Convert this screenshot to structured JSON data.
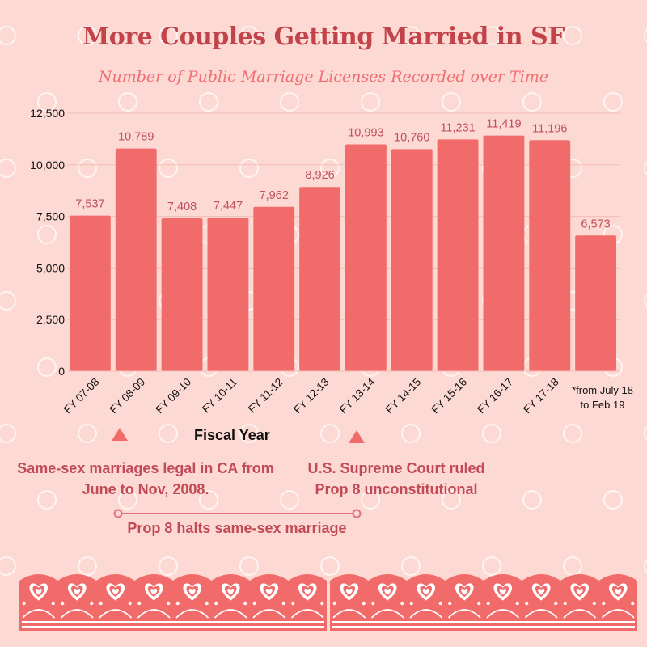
{
  "header": {
    "title": "More Couples Getting Married in SF",
    "subtitle": "Number of Public Marriage Licenses Recorded over Time"
  },
  "chart_data": {
    "type": "bar",
    "title": "More Couples Getting Married in SF",
    "subtitle": "Number of Public Marriage Licenses Recorded over Time",
    "xlabel": "Fiscal Year",
    "ylabel": "",
    "categories": [
      "FY 07-08",
      "FY 08-09",
      "FY 09-10",
      "FY 10-11",
      "FY 11-12",
      "FY 12-13",
      "FY 13-14",
      "FY 14-15",
      "FY 15-16",
      "FY 16-17",
      "FY 17-18",
      ""
    ],
    "values": [
      7537,
      10789,
      7408,
      7447,
      7962,
      8926,
      10993,
      10760,
      11231,
      11419,
      11196,
      6573
    ],
    "value_labels": [
      "7,537",
      "10,789",
      "7,408",
      "7,447",
      "7,962",
      "8,926",
      "10,993",
      "10,760",
      "11,231",
      "11,419",
      "11,196",
      "6,573"
    ],
    "y_ticks": [
      "0",
      "2,500",
      "5,000",
      "7,500",
      "10,000",
      "12,500"
    ],
    "ylim": [
      0,
      12500
    ],
    "grid": true,
    "bar_color": "#f26b6b",
    "label_color": "#c0505a"
  },
  "annotations": {
    "footnote": "*from July 18 to Feb 19",
    "note_left": "Same-sex marriages legal in CA from June to Nov, 2008.",
    "note_right": "U.S. Supreme Court ruled Prop 8 unconstitutional",
    "timeline_label": "Prop 8 halts same-sex marriage"
  },
  "colors": {
    "background": "#fdd9d3",
    "accent": "#f26b6b",
    "text_accent": "#c2434a"
  }
}
